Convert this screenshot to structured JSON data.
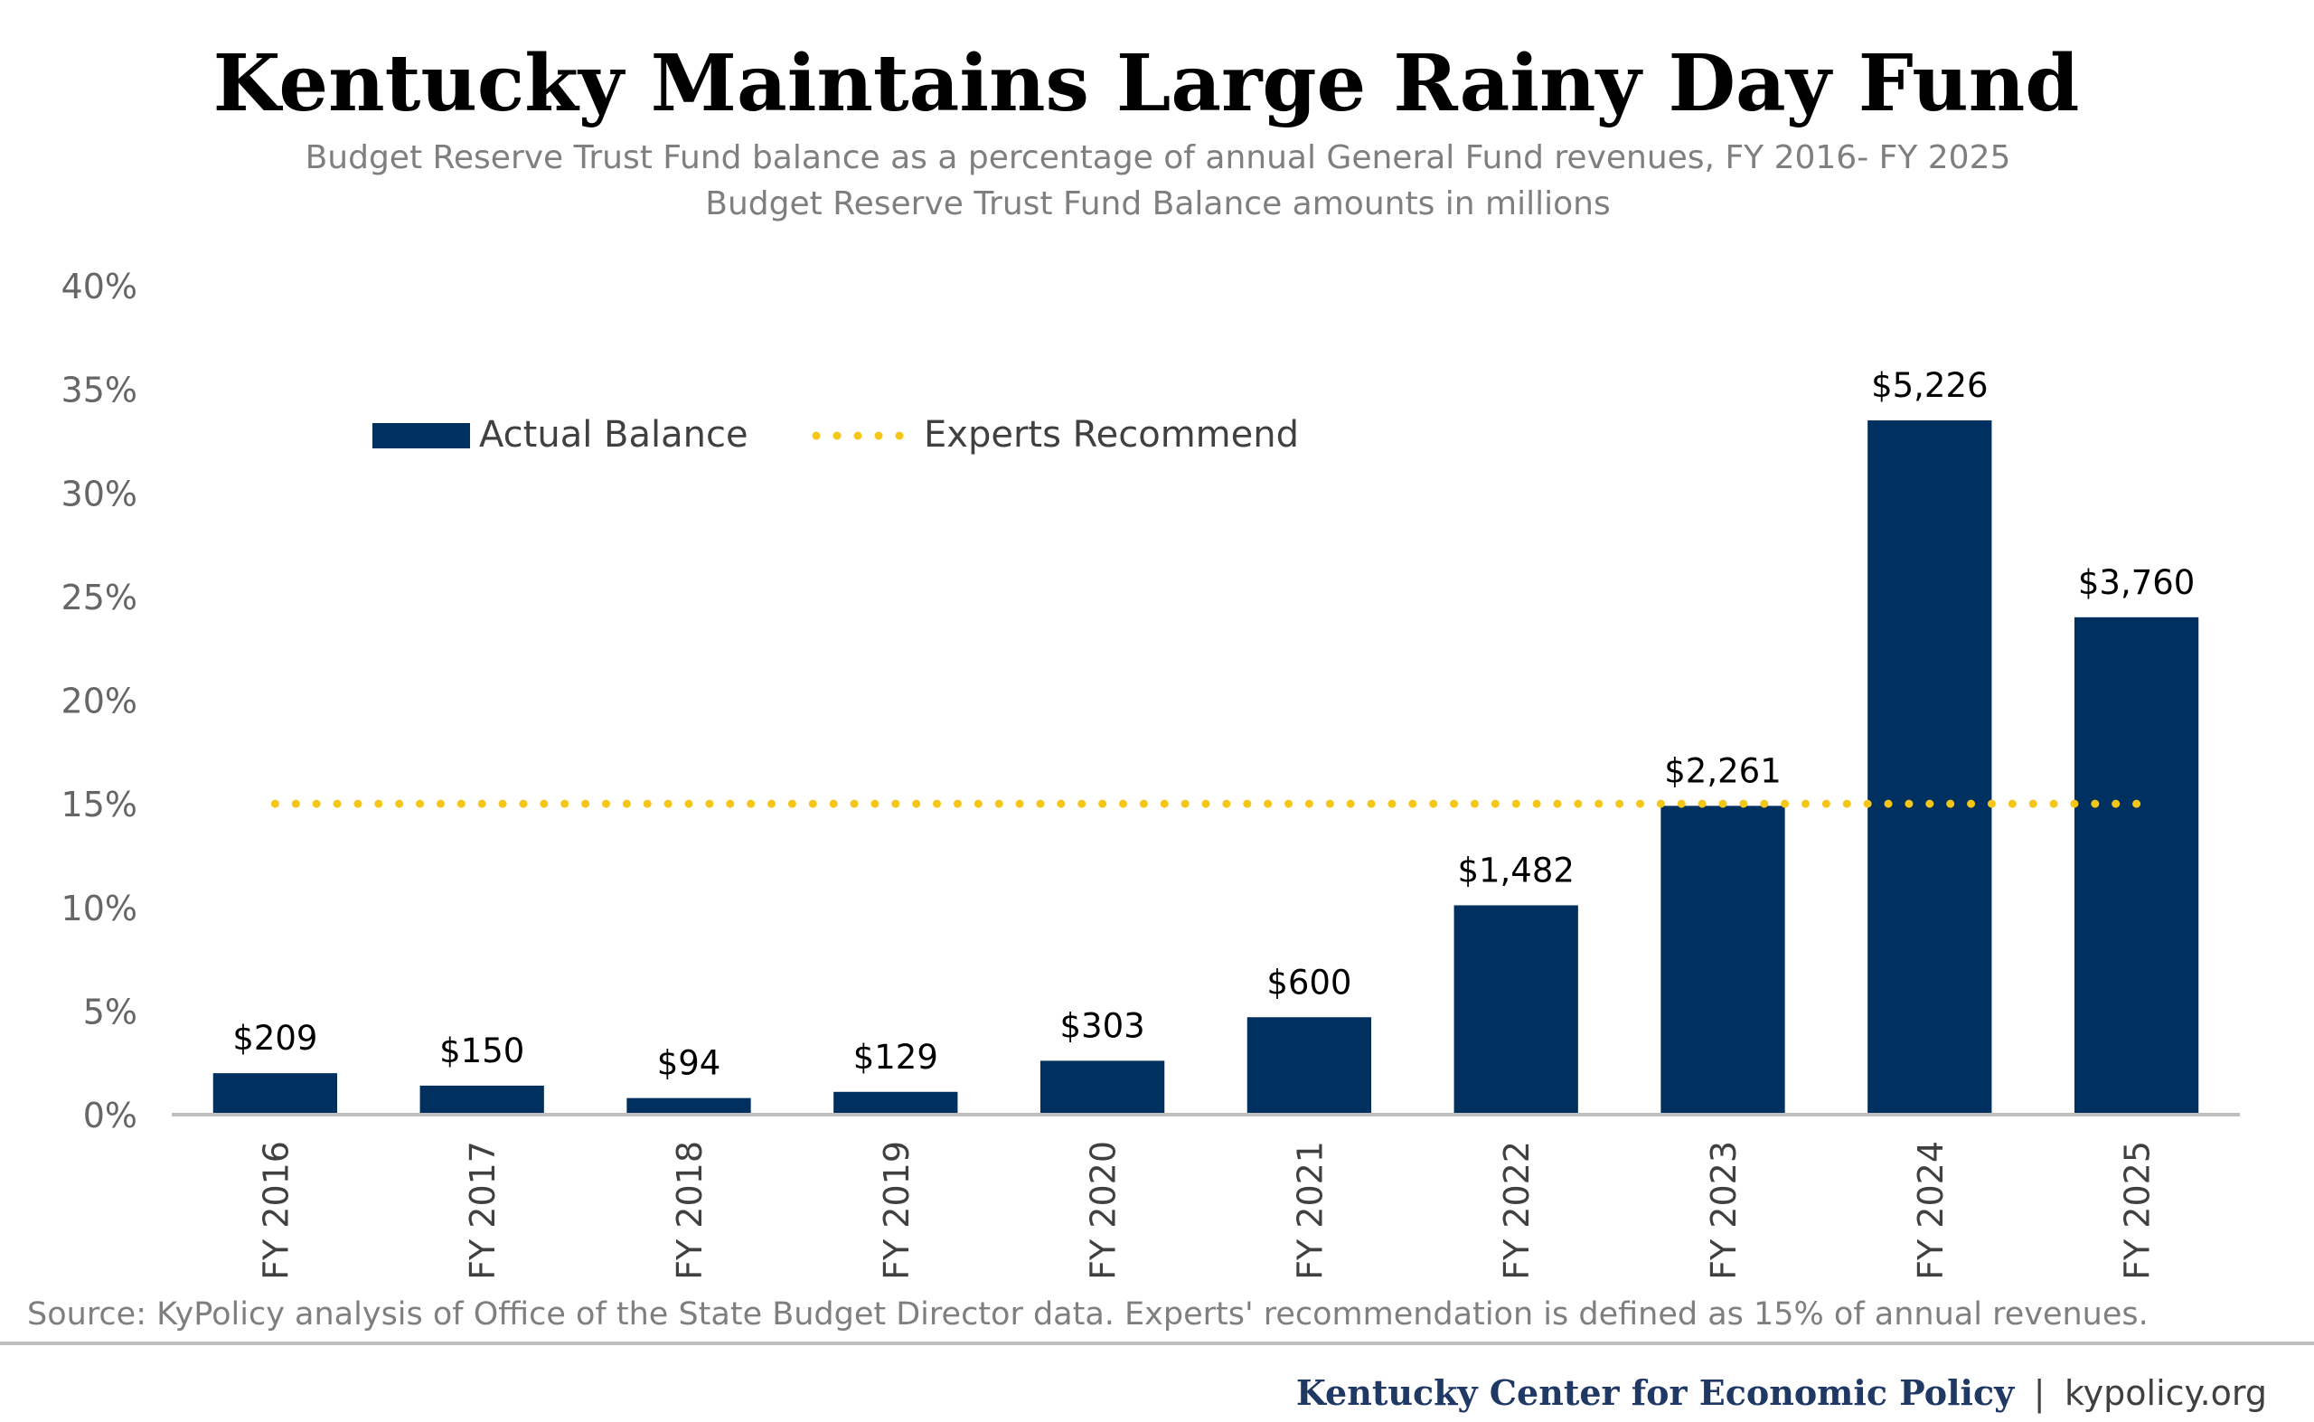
{
  "chart_data": {
    "type": "bar",
    "title": "Kentucky Maintains Large Rainy Day Fund",
    "subtitle_lines": [
      "Budget Reserve Trust Fund balance as a percentage of annual General Fund revenues, FY 2016- FY 2025",
      "Budget Reserve Trust Fund Balance amounts in millions"
    ],
    "categories": [
      "FY 2016",
      "FY 2017",
      "FY 2018",
      "FY 2019",
      "FY 2020",
      "FY 2021",
      "FY 2022",
      "FY 2023",
      "FY 2024",
      "FY 2025"
    ],
    "series": [
      {
        "name": "Actual Balance",
        "values": [
          2.0,
          1.4,
          0.8,
          1.1,
          2.6,
          4.7,
          10.1,
          14.9,
          33.5,
          24.0
        ],
        "data_labels": [
          "$209",
          "$150",
          "$94",
          "$129",
          "$303",
          "$600",
          "$1,482",
          "$2,261",
          "$5,226",
          "$3,760"
        ],
        "color": "#003060"
      },
      {
        "name": "Experts Recommend",
        "value": 15,
        "style": "dotted",
        "color": "#F5C518"
      }
    ],
    "ylim": [
      0,
      40
    ],
    "yticks": [
      0,
      5,
      10,
      15,
      20,
      25,
      30,
      35,
      40
    ],
    "ytick_labels": [
      "0%",
      "5%",
      "10%",
      "15%",
      "20%",
      "25%",
      "30%",
      "35%",
      "40%"
    ],
    "xlabel": "",
    "ylabel": "",
    "grid": false,
    "legend_position": "top-left",
    "source": "Source: KyPolicy analysis of Office of the State Budget Director data. Experts' recommendation is defined as 15% of annual revenues.",
    "footer_org": "Kentucky Center for Economic Policy",
    "footer_separator": "|",
    "footer_site": "kypolicy.org"
  },
  "colors": {
    "bar": "#003060",
    "recommend": "#F5C518",
    "axis": "#BFBFBF",
    "tick_text": "#666666",
    "subtitle_text": "#7F7F7F",
    "footer_org": "#1F3864"
  }
}
